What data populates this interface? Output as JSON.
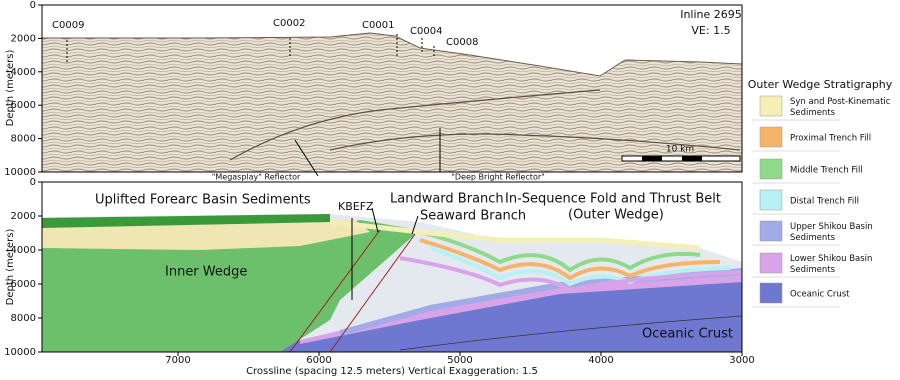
{
  "top_panel": {
    "inline": "Inline 2695",
    "ve": "VE: 1.5",
    "wells": [
      "C0009",
      "C0002",
      "C0001",
      "C0004",
      "C0008"
    ],
    "reflectors": [
      "\"Megasplay\" Reflector",
      "\"Deep Bright Reflector\""
    ],
    "scale_bar": "10 km",
    "y_axis_label": "Depth (meters)",
    "yticks": [
      0,
      2000,
      4000,
      6000,
      8000,
      10000
    ]
  },
  "bottom_panel": {
    "y_axis_label": "Depth (meters)",
    "yticks": [
      0,
      2000,
      4000,
      6000,
      8000,
      10000
    ],
    "labels": [
      "Uplifted Forearc Basin Sediments",
      "KBEFZ",
      "Landward Branch",
      "Seaward Branch",
      "In-Sequence Fold and Thrust Belt",
      "(Outer Wedge)",
      "Inner Wedge",
      "Oceanic Crust"
    ],
    "xticks": [
      7000,
      6000,
      5000,
      4000,
      3000
    ],
    "x_axis_label": "Crossline (spacing 12.5 meters) Vertical Exaggeration: 1.5"
  },
  "legend": {
    "title": "Outer Wedge Stratigraphy",
    "items": [
      {
        "lines": [
          "Syn and Post-Kinematic",
          "Sediments"
        ],
        "color": "#f3efb6"
      },
      {
        "lines": [
          "Proximal Trench Fill"
        ],
        "color": "#f5b46a"
      },
      {
        "lines": [
          "Middle Trench Fill"
        ],
        "color": "#8fd98b"
      },
      {
        "lines": [
          "Distal Trench Fill"
        ],
        "color": "#b7f1f4"
      },
      {
        "lines": [
          "Upper Shikou Basin",
          "Sediments"
        ],
        "color": "#a3aae8"
      },
      {
        "lines": [
          "Lower Shikou Basin",
          "Sediments"
        ],
        "color": "#d8a3e8"
      },
      {
        "lines": [
          "Oceanic Crust"
        ],
        "color": "#6e78d0"
      }
    ]
  }
}
